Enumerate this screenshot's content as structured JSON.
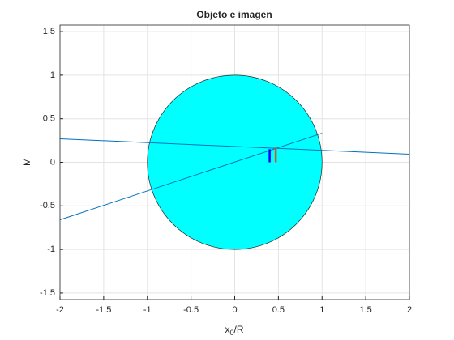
{
  "chart_data": {
    "type": "line",
    "title": "Objeto e imagen",
    "xlabel": {
      "text": "x",
      "sub": "0",
      "rest": "/R"
    },
    "ylabel": "M",
    "xlim": [
      -2,
      2
    ],
    "ylim": [
      -1.575,
      1.575
    ],
    "xticks": [
      -2,
      -1.5,
      -1,
      -0.5,
      0,
      0.5,
      1,
      1.5,
      2
    ],
    "yticks": [
      -1.5,
      -1,
      -0.5,
      0,
      0.5,
      1,
      1.5
    ],
    "grid": true,
    "circle": {
      "center": [
        0,
        0
      ],
      "radius": 1,
      "color": "#00ffff"
    },
    "series": [
      {
        "color": "#0072bd",
        "x": [
          -2,
          2
        ],
        "values": [
          0.27,
          0.093
        ]
      },
      {
        "color": "#0072bd",
        "x": [
          -2,
          1
        ],
        "values": [
          -0.66,
          0.334
        ]
      },
      {
        "color": "#0000ff",
        "x": [
          0.4,
          0.4
        ],
        "values": [
          0,
          0.15
        ]
      },
      {
        "color": "#d95319",
        "x": [
          0.47,
          0.47
        ],
        "values": [
          0,
          0.17
        ]
      }
    ]
  }
}
